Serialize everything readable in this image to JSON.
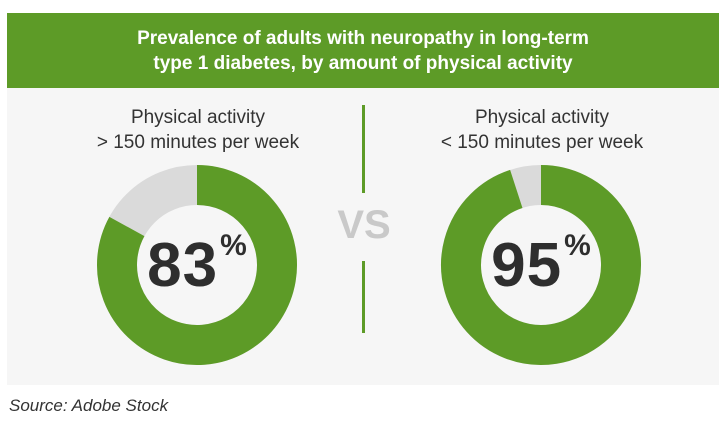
{
  "chart_data": {
    "type": "pie",
    "title_lines": [
      "Prevalence of adults with neuropathy in long-term",
      "type 1 diabetes, by amount of physical activity"
    ],
    "separator": "VS",
    "series": [
      {
        "label_lines": [
          "Physical activity",
          "> 150 minutes per week"
        ],
        "value": 83,
        "display": "83",
        "unit": "%"
      },
      {
        "label_lines": [
          "Physical activity",
          "< 150 minutes per week"
        ],
        "value": 95,
        "display": "95",
        "unit": "%"
      }
    ],
    "colors": {
      "filled": "#5d9b27",
      "remainder": "#dadada",
      "banner": "#5d9b27"
    }
  },
  "caption": "Source: Adobe Stock"
}
